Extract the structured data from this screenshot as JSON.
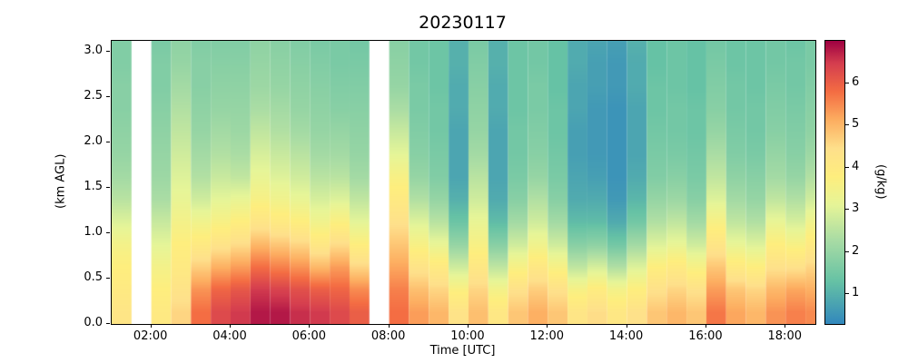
{
  "figure": {
    "title": "20230117",
    "xlabel": "Time [UTC]",
    "ylabel": "(km AGL)",
    "colorbar_label": "(g/kg)"
  },
  "chart_data": {
    "type": "heatmap",
    "title": "20230117",
    "xlabel": "Time [UTC]",
    "ylabel": "(km AGL)",
    "x_axis": {
      "start_hour": 1.0,
      "end_hour": 18.75,
      "column_width_hours": 0.5,
      "tick_hours": [
        2,
        4,
        6,
        8,
        10,
        12,
        14,
        16,
        18
      ],
      "tick_labels": [
        "02:00",
        "04:00",
        "06:00",
        "08:00",
        "10:00",
        "12:00",
        "14:00",
        "16:00",
        "18:00"
      ]
    },
    "y_axis": {
      "min_km": 0.0,
      "max_km": 3.125,
      "row_height_km": 0.25,
      "tick_values": [
        0.0,
        0.5,
        1.0,
        1.5,
        2.0,
        2.5,
        3.0
      ],
      "tick_labels": [
        "0.0",
        "0.5",
        "1.0",
        "1.5",
        "2.0",
        "2.5",
        "3.0"
      ]
    },
    "colorbar": {
      "label": "(g/kg)",
      "vmin": 0.3,
      "vmax": 7.0,
      "tick_values": [
        1,
        2,
        3,
        4,
        5,
        6
      ],
      "tick_labels": [
        "1",
        "2",
        "3",
        "4",
        "5",
        "6"
      ],
      "stops": [
        [
          0.0,
          "#3288bd"
        ],
        [
          0.15,
          "#66c2a5"
        ],
        [
          0.3,
          "#abdda4"
        ],
        [
          0.42,
          "#e6f598"
        ],
        [
          0.52,
          "#feee7e"
        ],
        [
          0.62,
          "#fee08b"
        ],
        [
          0.72,
          "#fdae61"
        ],
        [
          0.82,
          "#f46d43"
        ],
        [
          0.92,
          "#d53e4f"
        ],
        [
          1.0,
          "#9e0142"
        ]
      ]
    },
    "times": [
      "01:00",
      "01:30",
      "02:00",
      "02:30",
      "03:00",
      "03:30",
      "04:00",
      "04:30",
      "05:00",
      "05:30",
      "06:00",
      "06:30",
      "07:00",
      "07:30",
      "08:00",
      "08:30",
      "09:00",
      "09:30",
      "10:00",
      "10:30",
      "11:00",
      "11:30",
      "12:00",
      "12:30",
      "13:00",
      "13:30",
      "14:00",
      "14:30",
      "15:00",
      "15:30",
      "16:00",
      "16:30",
      "17:00",
      "17:30",
      "18:00",
      "18:30"
    ],
    "heights_km": [
      0.0,
      0.25,
      0.5,
      0.75,
      1.0,
      1.25,
      1.5,
      1.75,
      2.0,
      2.25,
      2.5,
      2.75,
      3.0
    ],
    "missing_columns": [
      1,
      13
    ],
    "values_gkg_bottom_to_top": [
      [
        4.2,
        4.0,
        3.8,
        3.5,
        3.0,
        2.5,
        2.2,
        2.0,
        1.9,
        1.8,
        1.8,
        1.7,
        1.7
      ],
      null,
      [
        4.0,
        3.8,
        3.5,
        3.1,
        2.7,
        2.3,
        2.1,
        2.0,
        1.9,
        1.8,
        1.7,
        1.7,
        1.6
      ],
      [
        4.6,
        4.3,
        4.0,
        3.8,
        3.5,
        3.2,
        3.0,
        2.8,
        2.6,
        2.4,
        2.2,
        2.0,
        1.9
      ],
      [
        5.8,
        5.4,
        4.7,
        4.0,
        3.4,
        2.8,
        2.4,
        2.2,
        2.0,
        1.9,
        1.8,
        1.8,
        1.7
      ],
      [
        6.3,
        5.9,
        5.1,
        4.3,
        3.6,
        3.1,
        2.7,
        2.4,
        2.2,
        2.0,
        1.9,
        1.8,
        1.7
      ],
      [
        6.5,
        6.1,
        5.3,
        4.5,
        3.8,
        3.2,
        2.6,
        2.3,
        2.1,
        2.0,
        1.9,
        1.8,
        1.7
      ],
      [
        6.8,
        6.5,
        5.8,
        5.0,
        4.2,
        3.6,
        3.2,
        2.9,
        2.6,
        2.3,
        2.1,
        2.0,
        1.9
      ],
      [
        6.8,
        6.4,
        5.6,
        4.8,
        4.0,
        3.4,
        3.0,
        2.7,
        2.4,
        2.2,
        2.0,
        1.9,
        1.8
      ],
      [
        6.6,
        6.2,
        5.4,
        4.6,
        3.8,
        3.2,
        2.8,
        2.5,
        2.2,
        2.0,
        1.9,
        1.8,
        1.7
      ],
      [
        6.5,
        6.0,
        5.0,
        4.1,
        3.4,
        2.9,
        2.5,
        2.2,
        2.0,
        1.9,
        1.8,
        1.7,
        1.6
      ],
      [
        6.3,
        5.9,
        5.3,
        4.5,
        3.7,
        3.0,
        2.5,
        2.2,
        2.0,
        1.8,
        1.7,
        1.6,
        1.6
      ],
      [
        6.0,
        5.5,
        4.6,
        3.8,
        3.1,
        2.6,
        2.2,
        2.0,
        1.9,
        1.8,
        1.7,
        1.6,
        1.5
      ],
      null,
      [
        5.8,
        5.6,
        5.2,
        4.8,
        4.4,
        4.0,
        3.6,
        3.1,
        2.7,
        2.3,
        2.0,
        1.9,
        1.8
      ],
      [
        5.3,
        4.9,
        4.3,
        3.6,
        3.0,
        2.4,
        2.0,
        1.8,
        1.7,
        1.6,
        1.6,
        1.5,
        1.5
      ],
      [
        5.0,
        4.6,
        4.0,
        3.2,
        2.5,
        2.0,
        1.7,
        1.6,
        1.5,
        1.5,
        1.4,
        1.4,
        1.4
      ],
      [
        4.3,
        3.7,
        2.8,
        2.0,
        1.4,
        1.0,
        0.8,
        0.8,
        0.8,
        0.9,
        0.9,
        1.0,
        1.0
      ],
      [
        4.9,
        4.6,
        4.1,
        3.6,
        3.2,
        2.8,
        2.5,
        2.2,
        2.0,
        1.9,
        1.8,
        1.7,
        1.6
      ],
      [
        4.1,
        3.5,
        2.6,
        1.8,
        1.2,
        0.9,
        0.8,
        0.8,
        0.8,
        0.9,
        0.9,
        1.0,
        1.0
      ],
      [
        4.8,
        4.4,
        3.6,
        2.8,
        2.2,
        1.8,
        1.6,
        1.5,
        1.5,
        1.4,
        1.4,
        1.4,
        1.4
      ],
      [
        5.1,
        4.7,
        4.1,
        3.4,
        2.8,
        2.4,
        2.0,
        1.8,
        1.7,
        1.6,
        1.6,
        1.5,
        1.5
      ],
      [
        4.8,
        4.4,
        3.6,
        2.8,
        2.2,
        1.8,
        1.6,
        1.5,
        1.4,
        1.4,
        1.3,
        1.3,
        1.3
      ],
      [
        4.2,
        3.6,
        2.6,
        1.8,
        1.2,
        0.9,
        0.8,
        0.7,
        0.7,
        0.8,
        0.8,
        0.9,
        0.9
      ],
      [
        4.5,
        3.9,
        2.9,
        1.9,
        1.2,
        0.9,
        0.7,
        0.6,
        0.6,
        0.6,
        0.7,
        0.7,
        0.8
      ],
      [
        4.1,
        3.5,
        2.4,
        1.5,
        0.9,
        0.6,
        0.5,
        0.5,
        0.5,
        0.5,
        0.6,
        0.6,
        0.7
      ],
      [
        4.4,
        3.8,
        3.0,
        2.2,
        1.5,
        1.1,
        0.9,
        0.8,
        0.8,
        0.8,
        0.9,
        0.9,
        1.0
      ],
      [
        4.8,
        4.4,
        3.8,
        3.0,
        2.4,
        2.0,
        1.7,
        1.6,
        1.5,
        1.4,
        1.4,
        1.3,
        1.3
      ],
      [
        5.0,
        4.6,
        4.0,
        3.2,
        2.6,
        2.1,
        1.8,
        1.6,
        1.5,
        1.5,
        1.4,
        1.4,
        1.4
      ],
      [
        4.8,
        4.4,
        3.6,
        2.8,
        2.2,
        1.8,
        1.6,
        1.5,
        1.4,
        1.4,
        1.3,
        1.3,
        1.3
      ],
      [
        5.7,
        5.3,
        4.8,
        4.2,
        3.6,
        3.0,
        2.6,
        2.3,
        2.0,
        1.8,
        1.7,
        1.6,
        1.5
      ],
      [
        5.2,
        4.8,
        4.0,
        3.2,
        2.6,
        2.2,
        1.9,
        1.7,
        1.6,
        1.5,
        1.5,
        1.4,
        1.4
      ],
      [
        5.0,
        4.6,
        3.8,
        3.0,
        2.4,
        2.0,
        1.8,
        1.6,
        1.5,
        1.5,
        1.4,
        1.4,
        1.4
      ],
      [
        5.4,
        5.0,
        4.4,
        3.8,
        3.2,
        2.6,
        2.2,
        2.0,
        1.8,
        1.7,
        1.6,
        1.5,
        1.5
      ],
      [
        5.6,
        5.2,
        4.4,
        3.6,
        2.9,
        2.4,
        2.0,
        1.8,
        1.7,
        1.6,
        1.5,
        1.5,
        1.4
      ],
      [
        5.5,
        5.1,
        4.6,
        4.0,
        3.4,
        2.8,
        2.4,
        2.1,
        1.9,
        1.8,
        1.7,
        1.6,
        1.6
      ]
    ]
  }
}
